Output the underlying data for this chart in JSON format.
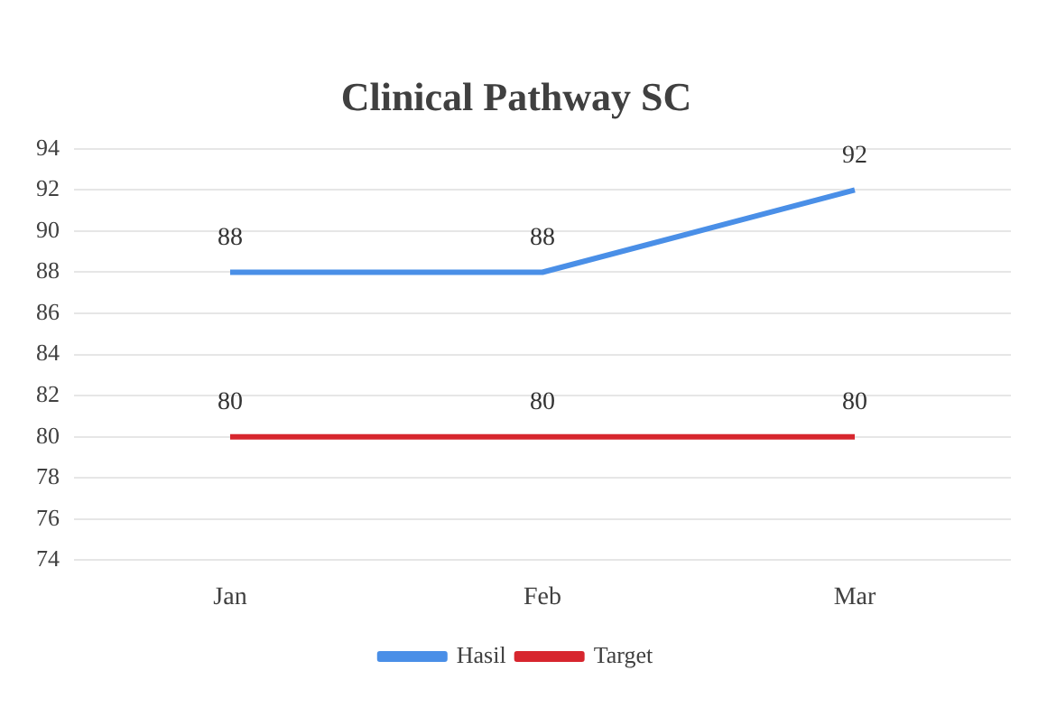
{
  "chart_data": {
    "type": "line",
    "title": "Clinical Pathway SC",
    "categories": [
      "Jan",
      "Feb",
      "Mar"
    ],
    "series": [
      {
        "name": "Hasil",
        "color": "#4a8fe7",
        "values": [
          88,
          88,
          92
        ]
      },
      {
        "name": "Target",
        "color": "#d7262e",
        "values": [
          80,
          80,
          80
        ]
      }
    ],
    "ylim": [
      74,
      94
    ],
    "yticks": [
      74,
      76,
      78,
      80,
      82,
      84,
      86,
      88,
      90,
      92,
      94
    ],
    "grid": "y",
    "legend": "bottom",
    "data_labels": true,
    "marker": "none",
    "line_style": "solid"
  }
}
